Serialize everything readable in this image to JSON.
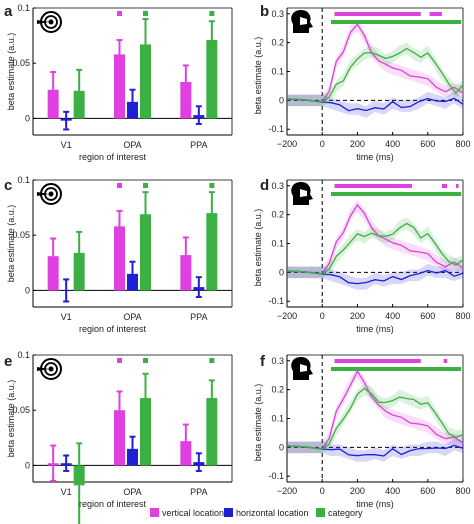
{
  "colors": {
    "vertical": "#e040e0",
    "horizontal": "#1f1fd6",
    "category": "#3cb043",
    "axis": "#000000"
  },
  "legend": [
    {
      "key": "vertical",
      "label": "vertical location"
    },
    {
      "key": "horizontal",
      "label": "horizontal location"
    },
    {
      "key": "category",
      "label": "category"
    }
  ],
  "chart_data": [
    {
      "panel": "a",
      "type": "bar",
      "icon": "target-icon",
      "categories": [
        "V1",
        "OPA",
        "PPA"
      ],
      "xlabel": "region of interest",
      "ylabel": "beta estimate (a.u.)",
      "ylim": [
        -0.015,
        0.1
      ],
      "yticks": [
        "0",
        "0.05",
        "0.1"
      ],
      "series": [
        {
          "key": "vertical",
          "values": [
            0.026,
            0.058,
            0.033
          ],
          "err": [
            0.016,
            0.013,
            0.015
          ]
        },
        {
          "key": "horizontal",
          "values": [
            -0.002,
            0.015,
            0.003
          ],
          "err": [
            0.008,
            0.011,
            0.008
          ]
        },
        {
          "key": "category",
          "values": [
            0.025,
            0.067,
            0.071
          ],
          "err": [
            0.019,
            0.023,
            0.017
          ]
        }
      ],
      "significant": [
        [
          false,
          true,
          false
        ],
        [
          false,
          false,
          false
        ],
        [
          false,
          true,
          true
        ]
      ]
    },
    {
      "panel": "c",
      "type": "bar",
      "icon": "target-icon",
      "categories": [
        "V1",
        "OPA",
        "PPA"
      ],
      "xlabel": "region of interest",
      "ylabel": "beta estimate (a.u.)",
      "ylim": [
        -0.015,
        0.1
      ],
      "yticks": [
        "0",
        "0.05",
        "0.1"
      ],
      "series": [
        {
          "key": "vertical",
          "values": [
            0.031,
            0.058,
            0.032
          ],
          "err": [
            0.016,
            0.014,
            0.016
          ]
        },
        {
          "key": "horizontal",
          "values": [
            0.0,
            0.015,
            0.003
          ],
          "err": [
            0.01,
            0.011,
            0.009
          ]
        },
        {
          "key": "category",
          "values": [
            0.034,
            0.069,
            0.07
          ],
          "err": [
            0.019,
            0.02,
            0.019
          ]
        }
      ],
      "significant": [
        [
          false,
          true,
          false
        ],
        [
          false,
          false,
          false
        ],
        [
          false,
          true,
          true
        ]
      ]
    },
    {
      "panel": "e",
      "type": "bar",
      "icon": "target-icon",
      "categories": [
        "V1",
        "OPA",
        "PPA"
      ],
      "xlabel": "region of interest",
      "ylabel": "beta estimate (a.u.)",
      "ylim": [
        -0.015,
        0.1
      ],
      "yticks": [
        "0",
        "0.05",
        "0.1"
      ],
      "series": [
        {
          "key": "vertical",
          "values": [
            0.002,
            0.05,
            0.022
          ],
          "err": [
            0.016,
            0.017,
            0.015
          ]
        },
        {
          "key": "horizontal",
          "values": [
            0.002,
            0.015,
            0.003
          ],
          "err": [
            0.007,
            0.011,
            0.008
          ]
        },
        {
          "key": "category",
          "values": [
            -0.018,
            0.061,
            0.061
          ],
          "err": [
            0.038,
            0.022,
            0.016
          ]
        }
      ],
      "significant": [
        [
          false,
          true,
          false
        ],
        [
          false,
          false,
          false
        ],
        [
          false,
          true,
          true
        ]
      ]
    },
    {
      "panel": "b",
      "type": "line",
      "icon": "head-icon",
      "xlabel": "time (ms)",
      "ylabel": "beta estimate (a.u.)",
      "xlim": [
        -200,
        800
      ],
      "ylim": [
        -0.12,
        0.32
      ],
      "xticks": [
        "−200",
        "0",
        "200",
        "400",
        "600",
        "800"
      ],
      "yticks": [
        "-0.1",
        "0",
        "0.1",
        "0.2",
        "0.3"
      ],
      "sig_bars": {
        "vertical": [
          [
            70,
            560
          ],
          [
            610,
            680
          ]
        ],
        "category": [
          [
            50,
            790
          ]
        ]
      },
      "series": [
        {
          "key": "vertical",
          "x": [
            -200,
            -100,
            0,
            40,
            80,
            120,
            160,
            200,
            240,
            280,
            320,
            360,
            400,
            450,
            500,
            550,
            600,
            650,
            700,
            750,
            800
          ],
          "y": [
            0,
            0,
            0,
            0.03,
            0.13,
            0.17,
            0.24,
            0.26,
            0.22,
            0.17,
            0.14,
            0.12,
            0.11,
            0.1,
            0.09,
            0.08,
            0.07,
            0.05,
            0.03,
            0.04,
            0.03
          ]
        },
        {
          "key": "horizontal",
          "x": [
            -200,
            -100,
            0,
            50,
            100,
            150,
            200,
            250,
            300,
            350,
            400,
            450,
            500,
            550,
            600,
            650,
            700,
            750,
            800
          ],
          "y": [
            0,
            0,
            0,
            -0.01,
            -0.02,
            -0.03,
            -0.03,
            -0.04,
            -0.02,
            -0.03,
            -0.01,
            -0.02,
            -0.02,
            -0.01,
            0.01,
            0,
            -0.01,
            0.01,
            -0.01
          ]
        },
        {
          "key": "category",
          "x": [
            -200,
            -100,
            0,
            40,
            80,
            120,
            160,
            200,
            240,
            280,
            320,
            360,
            400,
            440,
            480,
            520,
            560,
            600,
            640,
            680,
            720,
            760,
            800
          ],
          "y": [
            0,
            0,
            0,
            0.01,
            0.05,
            0.07,
            0.12,
            0.14,
            0.16,
            0.17,
            0.16,
            0.14,
            0.15,
            0.17,
            0.18,
            0.16,
            0.15,
            0.17,
            0.13,
            0.09,
            0.06,
            0.03,
            0.05
          ]
        }
      ]
    },
    {
      "panel": "d",
      "type": "line",
      "icon": "head-icon",
      "xlabel": "time (ms)",
      "ylabel": "beta estimate (a.u.)",
      "xlim": [
        -200,
        800
      ],
      "ylim": [
        -0.12,
        0.32
      ],
      "xticks": [
        "−200",
        "0",
        "200",
        "400",
        "600",
        "800"
      ],
      "yticks": [
        "-0.1",
        "0",
        "0.1",
        "0.2",
        "0.3"
      ],
      "sig_bars": {
        "vertical": [
          [
            70,
            510
          ],
          [
            680,
            710
          ],
          [
            760,
            775
          ]
        ],
        "category": [
          [
            50,
            790
          ]
        ]
      },
      "series": [
        {
          "key": "vertical",
          "x": [
            -200,
            -100,
            0,
            40,
            80,
            120,
            160,
            200,
            240,
            280,
            320,
            360,
            400,
            450,
            500,
            550,
            600,
            650,
            700,
            750,
            800
          ],
          "y": [
            0,
            0,
            0,
            0.03,
            0.1,
            0.14,
            0.2,
            0.23,
            0.2,
            0.16,
            0.13,
            0.11,
            0.1,
            0.09,
            0.08,
            0.07,
            0.06,
            0.04,
            0.02,
            0.03,
            0.02
          ]
        },
        {
          "key": "horizontal",
          "x": [
            -200,
            -100,
            0,
            50,
            100,
            150,
            200,
            250,
            300,
            350,
            400,
            450,
            500,
            550,
            600,
            650,
            700,
            750,
            800
          ],
          "y": [
            0,
            0,
            0,
            -0.01,
            -0.02,
            -0.03,
            -0.04,
            -0.04,
            -0.02,
            -0.03,
            -0.02,
            -0.02,
            -0.01,
            -0.01,
            0.01,
            0,
            0,
            -0.01,
            0
          ]
        },
        {
          "key": "category",
          "x": [
            -200,
            -100,
            0,
            40,
            80,
            120,
            160,
            200,
            240,
            280,
            320,
            360,
            400,
            440,
            480,
            520,
            560,
            600,
            640,
            680,
            720,
            760,
            800
          ],
          "y": [
            0,
            0,
            0,
            0.01,
            0.05,
            0.08,
            0.11,
            0.13,
            0.12,
            0.14,
            0.13,
            0.12,
            0.13,
            0.16,
            0.17,
            0.15,
            0.12,
            0.14,
            0.1,
            0.06,
            0.04,
            0.03,
            0.04
          ]
        }
      ]
    },
    {
      "panel": "f",
      "type": "line",
      "icon": "head-icon",
      "xlabel": "time (ms)",
      "ylabel": "beta estimate (a.u.)",
      "xlim": [
        -200,
        800
      ],
      "ylim": [
        -0.12,
        0.32
      ],
      "xticks": [
        "−200",
        "0",
        "200",
        "400",
        "600",
        "800"
      ],
      "yticks": [
        "-0.1",
        "0",
        "0.1",
        "0.2",
        "0.3"
      ],
      "sig_bars": {
        "vertical": [
          [
            70,
            560
          ],
          [
            690,
            710
          ]
        ],
        "category": [
          [
            50,
            790
          ]
        ]
      },
      "series": [
        {
          "key": "vertical",
          "x": [
            -200,
            -100,
            0,
            40,
            80,
            120,
            160,
            200,
            240,
            280,
            320,
            360,
            400,
            450,
            500,
            550,
            600,
            650,
            700,
            750,
            800
          ],
          "y": [
            0,
            0,
            0,
            0.03,
            0.12,
            0.17,
            0.22,
            0.26,
            0.22,
            0.18,
            0.15,
            0.12,
            0.11,
            0.1,
            0.09,
            0.08,
            0.07,
            0.05,
            0.03,
            0.03,
            0.02
          ]
        },
        {
          "key": "horizontal",
          "x": [
            -200,
            -100,
            0,
            50,
            100,
            150,
            200,
            250,
            300,
            350,
            400,
            450,
            500,
            550,
            600,
            650,
            700,
            750,
            800
          ],
          "y": [
            0,
            0,
            0,
            -0.01,
            -0.01,
            -0.02,
            -0.03,
            -0.03,
            -0.02,
            -0.03,
            -0.01,
            -0.02,
            -0.01,
            -0.01,
            0,
            0,
            -0.01,
            0.01,
            0
          ]
        },
        {
          "key": "category",
          "x": [
            -200,
            -100,
            0,
            40,
            80,
            120,
            160,
            200,
            240,
            280,
            320,
            360,
            400,
            440,
            480,
            520,
            560,
            600,
            640,
            680,
            720,
            760,
            800
          ],
          "y": [
            0,
            0,
            0,
            0.01,
            0.06,
            0.1,
            0.14,
            0.18,
            0.2,
            0.19,
            0.16,
            0.15,
            0.16,
            0.18,
            0.17,
            0.16,
            0.15,
            0.16,
            0.12,
            0.08,
            0.05,
            0.04,
            0.04
          ]
        }
      ]
    }
  ]
}
